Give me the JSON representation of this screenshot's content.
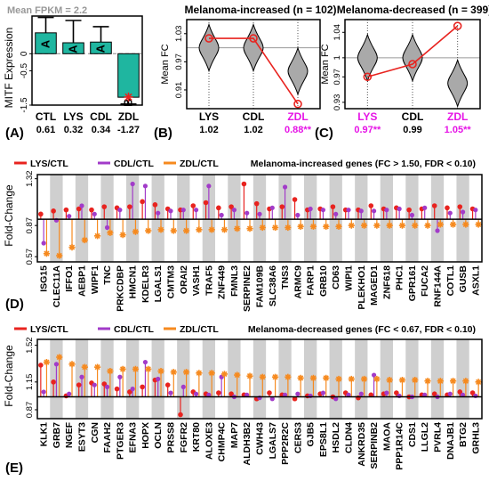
{
  "colors": {
    "teal": "#1fb6a0",
    "red": "#e8231f",
    "purple": "#a23bc9",
    "orange": "#f68a1f",
    "magenta": "#e614e6",
    "violin": "#a9a9a9",
    "band": "#cfcfcf"
  },
  "chart_data": [
    {
      "panel": "(A)",
      "type": "bar",
      "title": "Mean FPKM = 2.2",
      "ylabel": "MITF Expression",
      "categories": [
        "CTL",
        "LYS",
        "CDL",
        "ZDL"
      ],
      "values": [
        0.61,
        0.32,
        0.34,
        -1.27
      ],
      "value_labels": [
        "0.61",
        "0.32",
        "0.34",
        "-1.27"
      ],
      "error": [
        0.45,
        0.65,
        0.45,
        0.2
      ],
      "group_labels": [
        "A",
        "A",
        "A",
        "B"
      ],
      "yticks": [
        "0",
        "-0.5",
        "-1.5"
      ],
      "ylim": [
        -1.5,
        1.1
      ],
      "reference_line": 0
    },
    {
      "panel": "(B)",
      "type": "violin",
      "title": "Melanoma-increased (n = 102)",
      "ylabel": "Mean FC",
      "categories": [
        "LYS",
        "CDL",
        "ZDL"
      ],
      "means": [
        1.02,
        1.02,
        0.88
      ],
      "value_labels": [
        "1.02",
        "1.02",
        "0.88**"
      ],
      "highlight": [
        false,
        false,
        true
      ],
      "centers": [
        1.0,
        1.0,
        0.95
      ],
      "yticks": [
        "1.03",
        "0.97",
        "0.91"
      ],
      "ylim": [
        0.87,
        1.06
      ],
      "reference_line": 1.0
    },
    {
      "panel": "(C)",
      "type": "violin",
      "title": "Melanoma-decreased (n = 399)",
      "ylabel": "Mean FC",
      "categories": [
        "LYS",
        "CDL",
        "ZDL"
      ],
      "means": [
        0.97,
        0.99,
        1.05
      ],
      "value_labels": [
        "0.97**",
        "0.99",
        "1.05**"
      ],
      "highlight": [
        true,
        false,
        true
      ],
      "centers": [
        1.0,
        1.0,
        0.96
      ],
      "yticks": [
        "1.04",
        "1",
        "0.97",
        "0.93"
      ],
      "ylim": [
        0.92,
        1.06
      ],
      "reference_line": 1.0
    },
    {
      "panel": "(D)",
      "type": "lollipop",
      "title": "Melanoma-increased genes (FC > 1.50, FDR < 0.10)",
      "ylabel": "Fold-Change",
      "legend": [
        "LYS/CTL",
        "CDL/CTL",
        "ZDL/CTL"
      ],
      "yticks": [
        "1.32",
        "0.87",
        "0.57"
      ],
      "ylim": [
        0.52,
        1.36
      ],
      "reference_line": 0.93,
      "genes": [
        "ISG15",
        "CLEC11A",
        "IFFO1",
        "AEBP1",
        "WIPF1",
        "TNC",
        "PRKCDBP",
        "HMCN1",
        "KDELR3",
        "LGALS1",
        "CMTM3",
        "ORAI2",
        "VASH1",
        "TRAF5",
        "ZNF449",
        "FMNL3",
        "SERPINE2",
        "FAM109B",
        "SLC38A6",
        "TNS3",
        "ARMC9",
        "FARP1",
        "GRB10",
        "CD63",
        "WIPI1",
        "PLEKHO1",
        "MAGED1",
        "ZNF618",
        "PHC1",
        "GPR161",
        "FUCA2",
        "RNF144A",
        "COTL1",
        "GUSB",
        "ASXL1"
      ],
      "series": [
        {
          "name": "LYS/CTL",
          "values": [
            0.98,
            1.01,
            1.02,
            1.03,
            1.02,
            1.05,
            1.04,
            1.05,
            1.1,
            1.07,
            1.03,
            1.02,
            1.06,
            1.09,
            1.04,
            1.05,
            1.27,
            1.08,
            1.03,
            1.05,
            1.12,
            1.02,
            1.03,
            1.05,
            1.02,
            1.02,
            1.06,
            1.03,
            1.04,
            1.02,
            1.03,
            1.06,
            1.04,
            1.05,
            1.03
          ]
        },
        {
          "name": "CDL/CTL",
          "values": [
            0.7,
            0.92,
            0.96,
            1.06,
            0.98,
            0.85,
            1.02,
            1.27,
            1.25,
            0.99,
            1.01,
            1.02,
            1.02,
            1.25,
            0.97,
            1.02,
            0.99,
            0.98,
            1.04,
            1.24,
            0.97,
            1.03,
            1.02,
            0.98,
            1.02,
            1.01,
            1.01,
            1.02,
            1.03,
            0.97,
            1.04,
            0.82,
            0.99,
            1.0,
            1.02
          ]
        },
        {
          "name": "ZDL/CTL",
          "values": [
            0.6,
            0.58,
            0.66,
            0.73,
            0.77,
            0.8,
            0.78,
            0.81,
            0.82,
            0.83,
            0.82,
            0.82,
            0.83,
            0.83,
            0.83,
            0.84,
            0.84,
            0.85,
            0.85,
            0.85,
            0.86,
            0.86,
            0.86,
            0.86,
            0.87,
            0.87,
            0.87,
            0.87,
            0.87,
            0.87,
            0.87,
            0.88,
            0.88,
            0.88,
            0.88
          ]
        }
      ]
    },
    {
      "panel": "(E)",
      "type": "lollipop",
      "title": "Melanoma-decreased genes (FC < 0.67, FDR < 0.10)",
      "ylabel": "Fold-Change",
      "legend": [
        "LYS/CTL",
        "CDL/CTL",
        "ZDL/CTL"
      ],
      "yticks": [
        "1.52",
        "1.15",
        "0.87"
      ],
      "ylim": [
        0.78,
        1.58
      ],
      "reference_line": 1.0,
      "genes": [
        "KLK1",
        "GRB7",
        "NGEF",
        "ESYT3",
        "CGN",
        "FAAH2",
        "PTGER3",
        "EFNA3",
        "HOPX",
        "OCLN",
        "PRSS8",
        "FGFR2",
        "KRT80",
        "ALOXE3",
        "CHMP4C",
        "MAP7",
        "ALDH3B2",
        "CWH43",
        "LGALS7",
        "PPP2R2C",
        "CERS3",
        "GJB5",
        "EPS8L1",
        "HSDL2",
        "CLDN4",
        "ANKRD35",
        "SERPINB2",
        "MAOA",
        "PPP1R14C",
        "CDS1",
        "LLGL2",
        "PVRL4",
        "DNAJB1",
        "BTG2",
        "GRHL3"
      ],
      "series": [
        {
          "name": "LYS/CTL",
          "values": [
            1.32,
            1.15,
            1.01,
            1.12,
            1.14,
            1.13,
            1.08,
            1.05,
            1.1,
            1.17,
            1.12,
            0.82,
            1.05,
            1.03,
            1.04,
            1.03,
            1.02,
            0.98,
            1.04,
            1.02,
            0.98,
            1.01,
            1.03,
            1.0,
            1.04,
            0.99,
            1.02,
            1.03,
            1.04,
            1.0,
            1.02,
            1.03,
            1.02,
            1.05,
            1.04
          ]
        },
        {
          "name": "CDL/CTL",
          "values": [
            1.05,
            1.33,
            1.03,
            1.2,
            1.12,
            1.1,
            1.2,
            1.08,
            1.35,
            1.18,
            1.04,
            1.1,
            1.03,
            1.02,
            1.2,
            1.0,
            1.02,
            0.99,
            0.98,
            1.02,
            1.03,
            1.01,
            1.04,
            0.98,
            1.02,
            1.03,
            1.22,
            1.04,
            1.01,
            1.0,
            1.02,
            1.0,
            1.03,
            1.02,
            1.01
          ]
        },
        {
          "name": "ZDL/CTL",
          "values": [
            1.35,
            1.4,
            1.33,
            1.3,
            1.3,
            1.26,
            1.28,
            1.28,
            1.28,
            1.26,
            1.25,
            1.25,
            1.24,
            1.24,
            1.23,
            1.22,
            1.21,
            1.2,
            1.2,
            1.2,
            1.19,
            1.19,
            1.19,
            1.18,
            1.18,
            1.18,
            1.18,
            1.17,
            1.17,
            1.17,
            1.16,
            1.16,
            1.16,
            1.16,
            1.15
          ]
        }
      ]
    }
  ]
}
